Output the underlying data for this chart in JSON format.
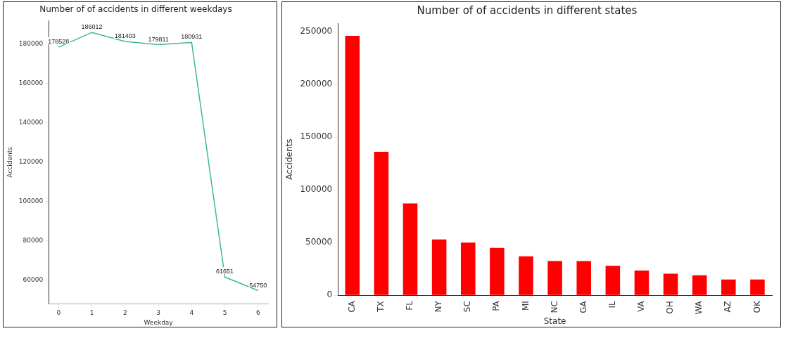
{
  "chart_data": [
    {
      "type": "line",
      "title": "Number of of accidents in different weekdays",
      "xlabel": "Weekday",
      "ylabel": "Accidents",
      "x": [
        0,
        1,
        2,
        3,
        4,
        5,
        6
      ],
      "series": [
        {
          "color": "#3cb89a",
          "values": [
            178528,
            186012,
            181403,
            179811,
            180931,
            61651,
            54750
          ]
        }
      ],
      "xlim": [
        -0.3,
        6.3
      ],
      "xticks": [
        0,
        1,
        2,
        3,
        4,
        5,
        6
      ],
      "ylim": [
        48000,
        192000
      ],
      "yticks": [
        60000,
        80000,
        100000,
        120000,
        140000,
        160000,
        180000
      ],
      "data_labels": true,
      "grid": false,
      "legend": false,
      "marker": "none",
      "line_style": "solid"
    },
    {
      "type": "bar",
      "title": "Number of of accidents in different states",
      "xlabel": "State",
      "ylabel": "Accidents",
      "categories": [
        "CA",
        "TX",
        "FL",
        "NY",
        "SC",
        "PA",
        "MI",
        "NC",
        "GA",
        "IL",
        "VA",
        "OH",
        "WA",
        "AZ",
        "OK"
      ],
      "series": [
        {
          "color": "#ff0000",
          "values": [
            246000,
            136000,
            87000,
            53000,
            50000,
            45000,
            37000,
            32500,
            32500,
            28000,
            23500,
            20500,
            19000,
            15000,
            15000
          ]
        }
      ],
      "ylim": [
        0,
        258000
      ],
      "yticks": [
        0,
        50000,
        100000,
        150000,
        200000,
        250000
      ],
      "grid": false,
      "legend": false
    }
  ]
}
